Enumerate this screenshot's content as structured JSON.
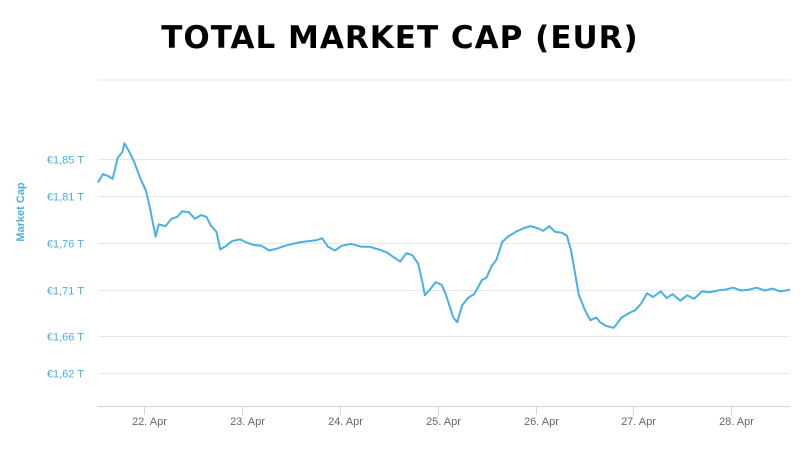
{
  "chart_data": {
    "type": "line",
    "title": "TOTAL MARKET CAP (EUR)",
    "ylabel": "Market Cap",
    "xlabel": "",
    "ylim": [
      1.585,
      1.935
    ],
    "xlim": [
      21.53,
      28.6
    ],
    "x_tick_values": [
      22,
      23,
      24,
      25,
      26,
      27,
      28
    ],
    "x_tick_labels": [
      "22. Apr",
      "23. Apr",
      "24. Apr",
      "25. Apr",
      "26. Apr",
      "27. Apr",
      "28. Apr"
    ],
    "y_ticks": [
      {
        "value": 1.62,
        "label": "€1,62 T"
      },
      {
        "value": 1.66,
        "label": "€1,66 T"
      },
      {
        "value": 1.71,
        "label": "€1,71 T"
      },
      {
        "value": 1.76,
        "label": "€1,76 T"
      },
      {
        "value": 1.81,
        "label": "€1,81 T"
      },
      {
        "value": 1.85,
        "label": "€1,85 T"
      }
    ],
    "grid": true,
    "series": [
      {
        "color": "#4ab0e2",
        "points": [
          [
            21.53,
            1.825
          ],
          [
            21.58,
            1.834
          ],
          [
            21.63,
            1.832
          ],
          [
            21.68,
            1.829
          ],
          [
            21.73,
            1.851
          ],
          [
            21.78,
            1.858
          ],
          [
            21.8,
            1.867
          ],
          [
            21.85,
            1.858
          ],
          [
            21.9,
            1.847
          ],
          [
            21.96,
            1.83
          ],
          [
            22.02,
            1.816
          ],
          [
            22.06,
            1.798
          ],
          [
            22.09,
            1.782
          ],
          [
            22.12,
            1.767
          ],
          [
            22.15,
            1.78
          ],
          [
            22.22,
            1.778
          ],
          [
            22.28,
            1.786
          ],
          [
            22.34,
            1.788
          ],
          [
            22.39,
            1.794
          ],
          [
            22.46,
            1.793
          ],
          [
            22.52,
            1.786
          ],
          [
            22.58,
            1.79
          ],
          [
            22.64,
            1.788
          ],
          [
            22.68,
            1.779
          ],
          [
            22.74,
            1.772
          ],
          [
            22.78,
            1.753
          ],
          [
            22.84,
            1.757
          ],
          [
            22.9,
            1.762
          ],
          [
            22.98,
            1.764
          ],
          [
            23.06,
            1.76
          ],
          [
            23.12,
            1.758
          ],
          [
            23.2,
            1.757
          ],
          [
            23.28,
            1.752
          ],
          [
            23.36,
            1.754
          ],
          [
            23.44,
            1.757
          ],
          [
            23.52,
            1.759
          ],
          [
            23.6,
            1.761
          ],
          [
            23.68,
            1.762
          ],
          [
            23.76,
            1.763
          ],
          [
            23.82,
            1.765
          ],
          [
            23.88,
            1.756
          ],
          [
            23.95,
            1.752
          ],
          [
            24.02,
            1.757
          ],
          [
            24.12,
            1.759
          ],
          [
            24.22,
            1.756
          ],
          [
            24.3,
            1.756
          ],
          [
            24.4,
            1.753
          ],
          [
            24.48,
            1.75
          ],
          [
            24.56,
            1.744
          ],
          [
            24.62,
            1.74
          ],
          [
            24.68,
            1.749
          ],
          [
            24.74,
            1.747
          ],
          [
            24.8,
            1.738
          ],
          [
            24.84,
            1.72
          ],
          [
            24.87,
            1.704
          ],
          [
            24.92,
            1.71
          ],
          [
            24.98,
            1.718
          ],
          [
            25.04,
            1.715
          ],
          [
            25.08,
            1.706
          ],
          [
            25.12,
            1.693
          ],
          [
            25.16,
            1.68
          ],
          [
            25.2,
            1.675
          ],
          [
            25.25,
            1.693
          ],
          [
            25.31,
            1.701
          ],
          [
            25.37,
            1.705
          ],
          [
            25.4,
            1.71
          ],
          [
            25.45,
            1.72
          ],
          [
            25.5,
            1.723
          ],
          [
            25.55,
            1.735
          ],
          [
            25.6,
            1.742
          ],
          [
            25.66,
            1.761
          ],
          [
            25.72,
            1.767
          ],
          [
            25.8,
            1.772
          ],
          [
            25.88,
            1.776
          ],
          [
            25.95,
            1.778
          ],
          [
            26.02,
            1.776
          ],
          [
            26.08,
            1.773
          ],
          [
            26.14,
            1.778
          ],
          [
            26.2,
            1.772
          ],
          [
            26.27,
            1.771
          ],
          [
            26.32,
            1.768
          ],
          [
            26.36,
            1.753
          ],
          [
            26.4,
            1.73
          ],
          [
            26.44,
            1.705
          ],
          [
            26.5,
            1.689
          ],
          [
            26.56,
            1.677
          ],
          [
            26.62,
            1.68
          ],
          [
            26.66,
            1.675
          ],
          [
            26.72,
            1.671
          ],
          [
            26.8,
            1.669
          ],
          [
            26.88,
            1.68
          ],
          [
            26.96,
            1.685
          ],
          [
            27.02,
            1.688
          ],
          [
            27.08,
            1.695
          ],
          [
            27.14,
            1.706
          ],
          [
            27.2,
            1.702
          ],
          [
            27.28,
            1.708
          ],
          [
            27.34,
            1.701
          ],
          [
            27.4,
            1.705
          ],
          [
            27.48,
            1.698
          ],
          [
            27.55,
            1.704
          ],
          [
            27.62,
            1.7
          ],
          [
            27.7,
            1.708
          ],
          [
            27.78,
            1.707
          ],
          [
            27.86,
            1.709
          ],
          [
            27.94,
            1.71
          ],
          [
            28.02,
            1.712
          ],
          [
            28.1,
            1.709
          ],
          [
            28.18,
            1.71
          ],
          [
            28.26,
            1.712
          ],
          [
            28.34,
            1.709
          ],
          [
            28.42,
            1.711
          ],
          [
            28.5,
            1.708
          ],
          [
            28.56,
            1.709
          ],
          [
            28.6,
            1.71
          ]
        ]
      }
    ]
  }
}
